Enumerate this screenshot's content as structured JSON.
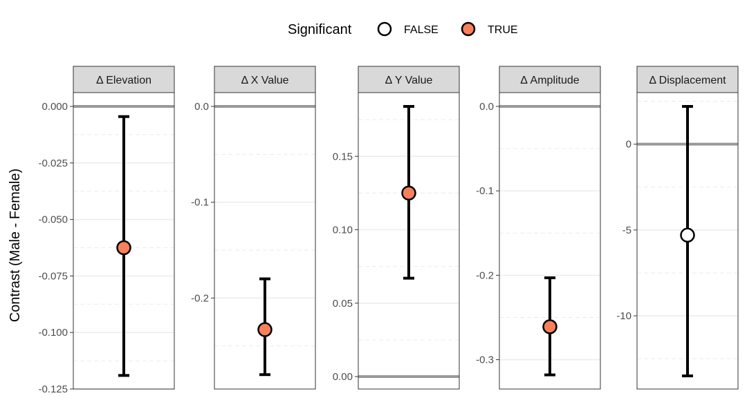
{
  "chart_data": {
    "type": "errorbar",
    "ylabel": "Contrast (Male - Female)",
    "grid": true,
    "legend": {
      "title": "Significant",
      "position": "top",
      "entries": [
        {
          "label": "FALSE",
          "fill": "#ffffff"
        },
        {
          "label": "TRUE",
          "fill": "#F8805A"
        }
      ]
    },
    "reference_line": 0,
    "colors": {
      "significant_true": "#F8805A",
      "significant_false": "#ffffff",
      "point_stroke": "#000000",
      "zero_line": "#999999",
      "grid_major": "#ebebeb",
      "grid_minor": "#ebebeb",
      "strip_fill": "#d9d9d9"
    },
    "facets": [
      {
        "strip": "Δ Elevation",
        "ylim": [
          -0.125,
          0.0
        ],
        "ticks": [
          0.0,
          -0.025,
          -0.05,
          -0.075,
          -0.1,
          -0.125
        ],
        "tick_labels": [
          "0.000",
          "-0.025",
          "-0.050",
          "-0.075",
          "-0.100",
          "-0.125"
        ],
        "estimate": -0.0625,
        "lower": -0.119,
        "upper": -0.0045,
        "significant": true
      },
      {
        "strip": "Δ X Value",
        "ylim": [
          -0.295,
          0.0
        ],
        "ticks": [
          0.0,
          -0.1,
          -0.2
        ],
        "tick_labels": [
          "0.0",
          "-0.1",
          "-0.2"
        ],
        "estimate": -0.233,
        "lower": -0.28,
        "upper": -0.18,
        "significant": true
      },
      {
        "strip": "Δ Y Value",
        "ylim": [
          0.0,
          0.184
        ],
        "ticks": [
          0.0,
          0.05,
          0.1,
          0.15
        ],
        "tick_labels": [
          "0.00",
          "0.05",
          "0.10",
          "0.15"
        ],
        "estimate": 0.125,
        "lower": 0.067,
        "upper": 0.184,
        "significant": true
      },
      {
        "strip": "Δ Amplitude",
        "ylim": [
          -0.32,
          0.0
        ],
        "ticks": [
          0.0,
          -0.1,
          -0.2,
          -0.3
        ],
        "tick_labels": [
          "0.0",
          "-0.1",
          "-0.2",
          "-0.3"
        ],
        "estimate": -0.261,
        "lower": -0.318,
        "upper": -0.203,
        "significant": true
      },
      {
        "strip": "Δ Displacement",
        "ylim": [
          -13.5,
          2.2
        ],
        "ticks": [
          0,
          -5,
          -10
        ],
        "tick_labels": [
          "0",
          "-5",
          "-10"
        ],
        "estimate": -5.3,
        "lower": -13.5,
        "upper": 2.2,
        "significant": false
      }
    ]
  }
}
